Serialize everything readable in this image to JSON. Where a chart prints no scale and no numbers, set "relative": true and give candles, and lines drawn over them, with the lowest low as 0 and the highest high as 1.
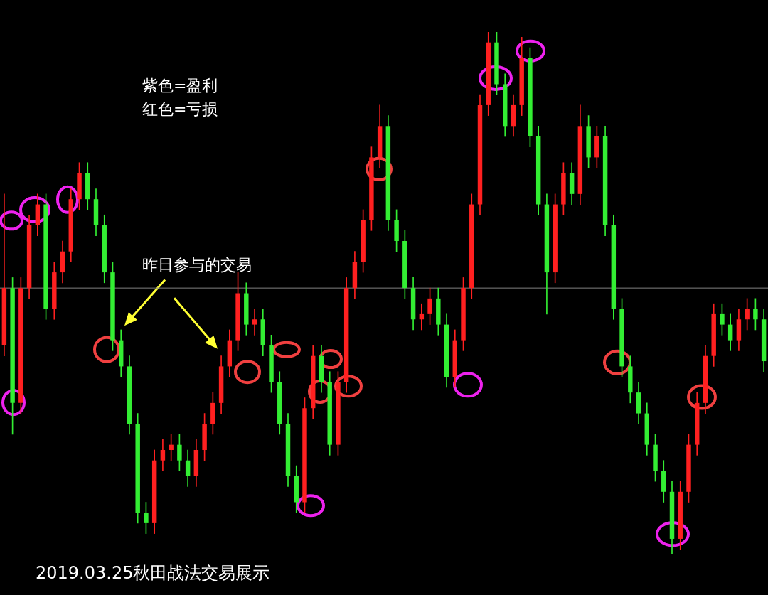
{
  "chart_data": {
    "type": "candlestick",
    "relative": true,
    "title": "2019.03.25秋田战法交易展示",
    "annotations": [
      "紫色=盈利",
      "红色=亏损",
      "昨日参与的交易"
    ],
    "ref_lines": [
      {
        "axis": "y",
        "value": 0.51,
        "color": "#808080"
      }
    ],
    "legend": false,
    "categories": [
      null,
      null,
      null,
      null,
      null,
      null,
      null,
      null,
      null,
      null,
      null,
      null,
      null,
      null,
      null,
      null,
      null,
      null,
      null,
      null,
      null,
      null,
      null,
      null,
      null,
      null,
      null,
      null,
      null,
      null,
      null,
      null,
      null,
      null,
      null,
      null,
      null,
      null,
      null,
      null,
      null,
      null,
      null,
      null,
      null,
      null,
      null,
      null,
      null,
      null,
      null,
      null,
      null,
      null,
      null,
      null,
      null,
      null,
      null,
      null,
      null,
      null,
      null,
      null,
      null,
      null,
      null,
      null,
      null,
      null,
      null,
      null,
      null,
      null,
      null,
      null,
      null,
      null,
      null,
      null,
      null,
      null,
      null,
      null,
      null,
      null,
      null,
      null,
      null,
      null,
      null,
      null
    ],
    "ohlc": [
      [
        0.4,
        0.69,
        0.38,
        0.51
      ],
      [
        0.51,
        0.53,
        0.23,
        0.29
      ],
      [
        0.29,
        0.53,
        0.27,
        0.51
      ],
      [
        0.51,
        0.65,
        0.49,
        0.63
      ],
      [
        0.63,
        0.69,
        0.61,
        0.67
      ],
      [
        0.67,
        0.69,
        0.45,
        0.47
      ],
      [
        0.47,
        0.56,
        0.45,
        0.54
      ],
      [
        0.54,
        0.6,
        0.52,
        0.58
      ],
      [
        0.58,
        0.7,
        0.56,
        0.68
      ],
      [
        0.68,
        0.75,
        0.66,
        0.73
      ],
      [
        0.73,
        0.75,
        0.66,
        0.68
      ],
      [
        0.68,
        0.7,
        0.61,
        0.63
      ],
      [
        0.63,
        0.65,
        0.52,
        0.54
      ],
      [
        0.54,
        0.56,
        0.39,
        0.41
      ],
      [
        0.41,
        0.43,
        0.34,
        0.36
      ],
      [
        0.36,
        0.38,
        0.23,
        0.25
      ],
      [
        0.25,
        0.27,
        0.06,
        0.08
      ],
      [
        0.08,
        0.1,
        0.04,
        0.06
      ],
      [
        0.06,
        0.2,
        0.04,
        0.18
      ],
      [
        0.18,
        0.22,
        0.16,
        0.2
      ],
      [
        0.2,
        0.23,
        0.18,
        0.21
      ],
      [
        0.21,
        0.23,
        0.16,
        0.18
      ],
      [
        0.18,
        0.2,
        0.13,
        0.15
      ],
      [
        0.15,
        0.22,
        0.13,
        0.2
      ],
      [
        0.2,
        0.27,
        0.18,
        0.25
      ],
      [
        0.25,
        0.31,
        0.23,
        0.29
      ],
      [
        0.29,
        0.38,
        0.27,
        0.36
      ],
      [
        0.36,
        0.43,
        0.34,
        0.41
      ],
      [
        0.41,
        0.54,
        0.39,
        0.5
      ],
      [
        0.5,
        0.52,
        0.42,
        0.44
      ],
      [
        0.44,
        0.47,
        0.42,
        0.45
      ],
      [
        0.45,
        0.47,
        0.38,
        0.4
      ],
      [
        0.4,
        0.42,
        0.31,
        0.33
      ],
      [
        0.33,
        0.35,
        0.23,
        0.25
      ],
      [
        0.25,
        0.27,
        0.13,
        0.15
      ],
      [
        0.15,
        0.17,
        0.08,
        0.1
      ],
      [
        0.1,
        0.3,
        0.08,
        0.28
      ],
      [
        0.28,
        0.4,
        0.26,
        0.38
      ],
      [
        0.38,
        0.4,
        0.31,
        0.33
      ],
      [
        0.33,
        0.35,
        0.19,
        0.21
      ],
      [
        0.21,
        0.35,
        0.19,
        0.33
      ],
      [
        0.33,
        0.53,
        0.31,
        0.51
      ],
      [
        0.51,
        0.58,
        0.49,
        0.56
      ],
      [
        0.56,
        0.66,
        0.54,
        0.64
      ],
      [
        0.64,
        0.78,
        0.62,
        0.76
      ],
      [
        0.76,
        0.86,
        0.74,
        0.82
      ],
      [
        0.82,
        0.84,
        0.62,
        0.64
      ],
      [
        0.64,
        0.66,
        0.58,
        0.6
      ],
      [
        0.6,
        0.62,
        0.49,
        0.51
      ],
      [
        0.51,
        0.53,
        0.43,
        0.45
      ],
      [
        0.45,
        0.48,
        0.43,
        0.46
      ],
      [
        0.46,
        0.51,
        0.44,
        0.49
      ],
      [
        0.49,
        0.51,
        0.42,
        0.44
      ],
      [
        0.44,
        0.46,
        0.32,
        0.34
      ],
      [
        0.34,
        0.43,
        0.32,
        0.41
      ],
      [
        0.41,
        0.53,
        0.39,
        0.51
      ],
      [
        0.51,
        0.69,
        0.49,
        0.67
      ],
      [
        0.67,
        0.88,
        0.65,
        0.86
      ],
      [
        0.86,
        1,
        0.84,
        0.98
      ],
      [
        0.98,
        1,
        0.88,
        0.9
      ],
      [
        0.9,
        0.92,
        0.8,
        0.82
      ],
      [
        0.82,
        0.88,
        0.8,
        0.86
      ],
      [
        0.86,
        0.99,
        0.84,
        0.95
      ],
      [
        0.95,
        0.97,
        0.78,
        0.8
      ],
      [
        0.8,
        0.82,
        0.65,
        0.67
      ],
      [
        0.67,
        0.69,
        0.46,
        0.54
      ],
      [
        0.54,
        0.69,
        0.52,
        0.67
      ],
      [
        0.67,
        0.75,
        0.65,
        0.73
      ],
      [
        0.73,
        0.75,
        0.67,
        0.69
      ],
      [
        0.69,
        0.86,
        0.67,
        0.82
      ],
      [
        0.82,
        0.84,
        0.74,
        0.76
      ],
      [
        0.76,
        0.82,
        0.74,
        0.8
      ],
      [
        0.8,
        0.82,
        0.61,
        0.63
      ],
      [
        0.63,
        0.65,
        0.45,
        0.47
      ],
      [
        0.47,
        0.49,
        0.34,
        0.36
      ],
      [
        0.36,
        0.38,
        0.29,
        0.31
      ],
      [
        0.31,
        0.33,
        0.25,
        0.27
      ],
      [
        0.27,
        0.29,
        0.19,
        0.21
      ],
      [
        0.21,
        0.23,
        0.14,
        0.16
      ],
      [
        0.16,
        0.18,
        0.1,
        0.12
      ],
      [
        0.12,
        0.14,
        0,
        0.03
      ],
      [
        0.03,
        0.14,
        0.01,
        0.12
      ],
      [
        0.12,
        0.23,
        0.1,
        0.21
      ],
      [
        0.21,
        0.31,
        0.19,
        0.29
      ],
      [
        0.29,
        0.4,
        0.27,
        0.38
      ],
      [
        0.38,
        0.48,
        0.36,
        0.46
      ],
      [
        0.46,
        0.48,
        0.42,
        0.44
      ],
      [
        0.44,
        0.46,
        0.39,
        0.41
      ],
      [
        0.41,
        0.47,
        0.39,
        0.45
      ],
      [
        0.45,
        0.49,
        0.43,
        0.47
      ],
      [
        0.47,
        0.49,
        0.43,
        0.45
      ],
      [
        0.45,
        0.47,
        0.35,
        0.37
      ]
    ],
    "colors": [
      "#ff2020",
      "#33ee33",
      "#ff2020",
      "#ff2020",
      "#ff2020",
      "#33ee33",
      "#ff2020",
      "#ff2020",
      "#ff2020",
      "#ff2020",
      "#33ee33",
      "#33ee33",
      "#33ee33",
      "#33ee33",
      "#33ee33",
      "#33ee33",
      "#33ee33",
      "#33ee33",
      "#ff2020",
      "#ff2020",
      "#ff2020",
      "#33ee33",
      "#33ee33",
      "#ff2020",
      "#ff2020",
      "#ff2020",
      "#ff2020",
      "#ff2020",
      "#ff2020",
      "#33ee33",
      "#ff2020",
      "#33ee33",
      "#33ee33",
      "#33ee33",
      "#33ee33",
      "#33ee33",
      "#ff2020",
      "#ff2020",
      "#33ee33",
      "#33ee33",
      "#ff2020",
      "#ff2020",
      "#ff2020",
      "#ff2020",
      "#ff2020",
      "#ff2020",
      "#33ee33",
      "#33ee33",
      "#33ee33",
      "#33ee33",
      "#ff2020",
      "#ff2020",
      "#33ee33",
      "#33ee33",
      "#ff2020",
      "#ff2020",
      "#ff2020",
      "#ff2020",
      "#ff2020",
      "#33ee33",
      "#33ee33",
      "#ff2020",
      "#ff2020",
      "#33ee33",
      "#33ee33",
      "#33ee33",
      "#ff2020",
      "#ff2020",
      "#33ee33",
      "#ff2020",
      "#33ee33",
      "#ff2020",
      "#33ee33",
      "#33ee33",
      "#33ee33",
      "#33ee33",
      "#33ee33",
      "#33ee33",
      "#33ee33",
      "#33ee33",
      "#33ee33",
      "#ff2020",
      "#ff2020",
      "#ff2020",
      "#ff2020",
      "#ff2020",
      "#33ee33",
      "#33ee33",
      "#ff2020",
      "#ff2020",
      "#33ee33",
      "#33ee33"
    ]
  }
}
